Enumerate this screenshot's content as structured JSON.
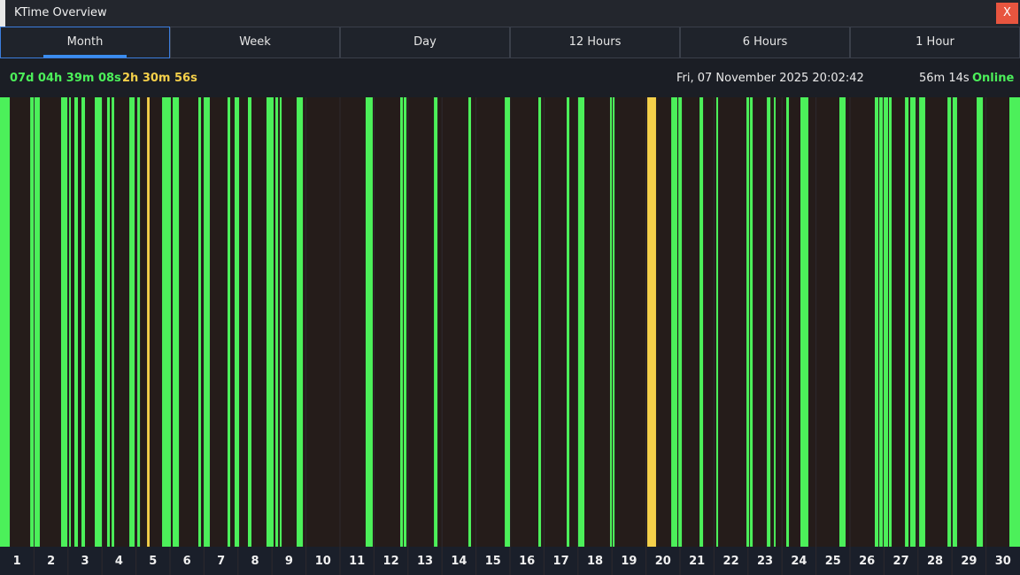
{
  "window": {
    "title": "KTime Overview",
    "close": "X"
  },
  "tabs": [
    "Month",
    "Week",
    "Day",
    "12 Hours",
    "6 Hours",
    "1 Hour"
  ],
  "status": {
    "online_total": "07d 04h 39m 08s",
    "idle_total": "2h 30m 56s",
    "datetime": "Fri, 07 November 2025 20:02:42",
    "session": "56m 14s",
    "state": "Online"
  },
  "timeline": {
    "xlim": [
      0,
      720
    ],
    "days": [
      1,
      2,
      3,
      4,
      5,
      6,
      7,
      8,
      9,
      10,
      11,
      12,
      13,
      14,
      15,
      16,
      17,
      18,
      19,
      20,
      21,
      22,
      23,
      24,
      25,
      26,
      27,
      28,
      29,
      30
    ],
    "online_color": "#4cf05a",
    "idle_color": "#f5d04a",
    "background": "#251c1a",
    "online": [
      [
        0,
        6.9
      ],
      [
        21.3,
        23.8
      ],
      [
        24.4,
        28.1
      ],
      [
        43.1,
        47.5
      ],
      [
        48.8,
        50
      ],
      [
        52.5,
        55
      ],
      [
        57.5,
        60
      ],
      [
        66.9,
        71.9
      ],
      [
        75.6,
        77.5
      ],
      [
        78.8,
        80.6
      ],
      [
        91.3,
        95
      ],
      [
        96.9,
        98.8
      ],
      [
        114.4,
        120.6
      ],
      [
        121.9,
        126.3
      ],
      [
        140,
        141.9
      ],
      [
        143.8,
        148.1
      ],
      [
        160.6,
        162.5
      ],
      [
        165.6,
        168.8
      ],
      [
        175,
        177.5
      ],
      [
        188.1,
        193.1
      ],
      [
        194.4,
        196.3
      ],
      [
        197.5,
        198.8
      ],
      [
        209.4,
        213.8
      ],
      [
        258.1,
        263.1
      ],
      [
        282.5,
        284.4
      ],
      [
        285,
        286.9
      ],
      [
        306.3,
        308.8
      ],
      [
        330.6,
        332.5
      ],
      [
        356.3,
        360
      ],
      [
        380,
        381.9
      ],
      [
        400,
        401.9
      ],
      [
        408.1,
        412.5
      ],
      [
        430.6,
        431.9
      ],
      [
        432.5,
        433.8
      ],
      [
        473.8,
        478.1
      ],
      [
        478.8,
        481.3
      ],
      [
        493.8,
        496.3
      ],
      [
        505.6,
        506.9
      ],
      [
        526.9,
        528.8
      ],
      [
        529.4,
        531.3
      ],
      [
        541.3,
        543.8
      ],
      [
        546.3,
        547.5
      ],
      [
        555,
        556.9
      ],
      [
        565,
        570.6
      ],
      [
        592.5,
        596.9
      ],
      [
        617.5,
        620
      ],
      [
        620.6,
        623.1
      ],
      [
        623.8,
        626.9
      ],
      [
        627.5,
        629.4
      ],
      [
        638.8,
        641.3
      ],
      [
        642.5,
        646.3
      ],
      [
        648.8,
        653.1
      ],
      [
        668.8,
        671.3
      ],
      [
        672.5,
        675.6
      ],
      [
        689.4,
        693.8
      ],
      [
        712.5,
        720
      ]
    ],
    "idle": [
      [
        103.8,
        105.6
      ],
      [
        456.9,
        463.1
      ]
    ]
  }
}
